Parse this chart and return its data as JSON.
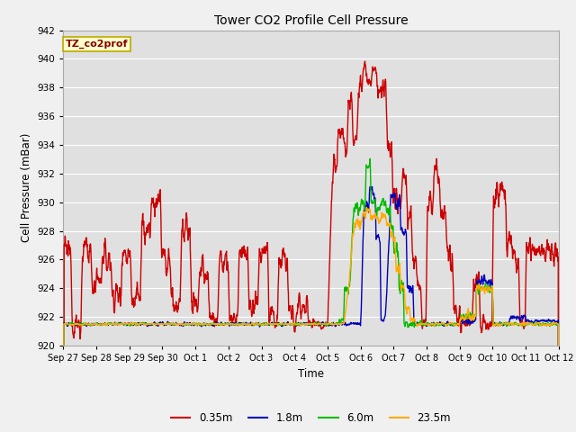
{
  "title": "Tower CO2 Profile Cell Pressure",
  "xlabel": "Time",
  "ylabel": "Cell Pressure (mBar)",
  "ylim": [
    920,
    942
  ],
  "yticks": [
    920,
    922,
    924,
    926,
    928,
    930,
    932,
    934,
    936,
    938,
    940,
    942
  ],
  "fig_facecolor": "#f0f0f0",
  "plot_bg_color": "#e0e0e0",
  "grid_color": "#ffffff",
  "legend_label": "TZ_co2prof",
  "legend_box_color": "#ffffcc",
  "legend_box_edge": "#bbaa00",
  "series": [
    {
      "label": "0.35m",
      "color": "#cc0000",
      "lw": 1.0
    },
    {
      "label": "1.8m",
      "color": "#0000bb",
      "lw": 1.0
    },
    {
      "label": "6.0m",
      "color": "#00bb00",
      "lw": 1.0
    },
    {
      "label": "23.5m",
      "color": "#ffaa00",
      "lw": 1.0
    }
  ],
  "x_tick_labels": [
    "Sep 27",
    "Sep 28",
    "Sep 29",
    "Sep 30",
    "Oct 1",
    "Oct 2",
    "Oct 3",
    "Oct 4",
    "Oct 5",
    "Oct 6",
    "Oct 7",
    "Oct 8",
    "Oct 9",
    "Oct 10",
    "Oct 11",
    "Oct 12"
  ],
  "n_points": 2000
}
